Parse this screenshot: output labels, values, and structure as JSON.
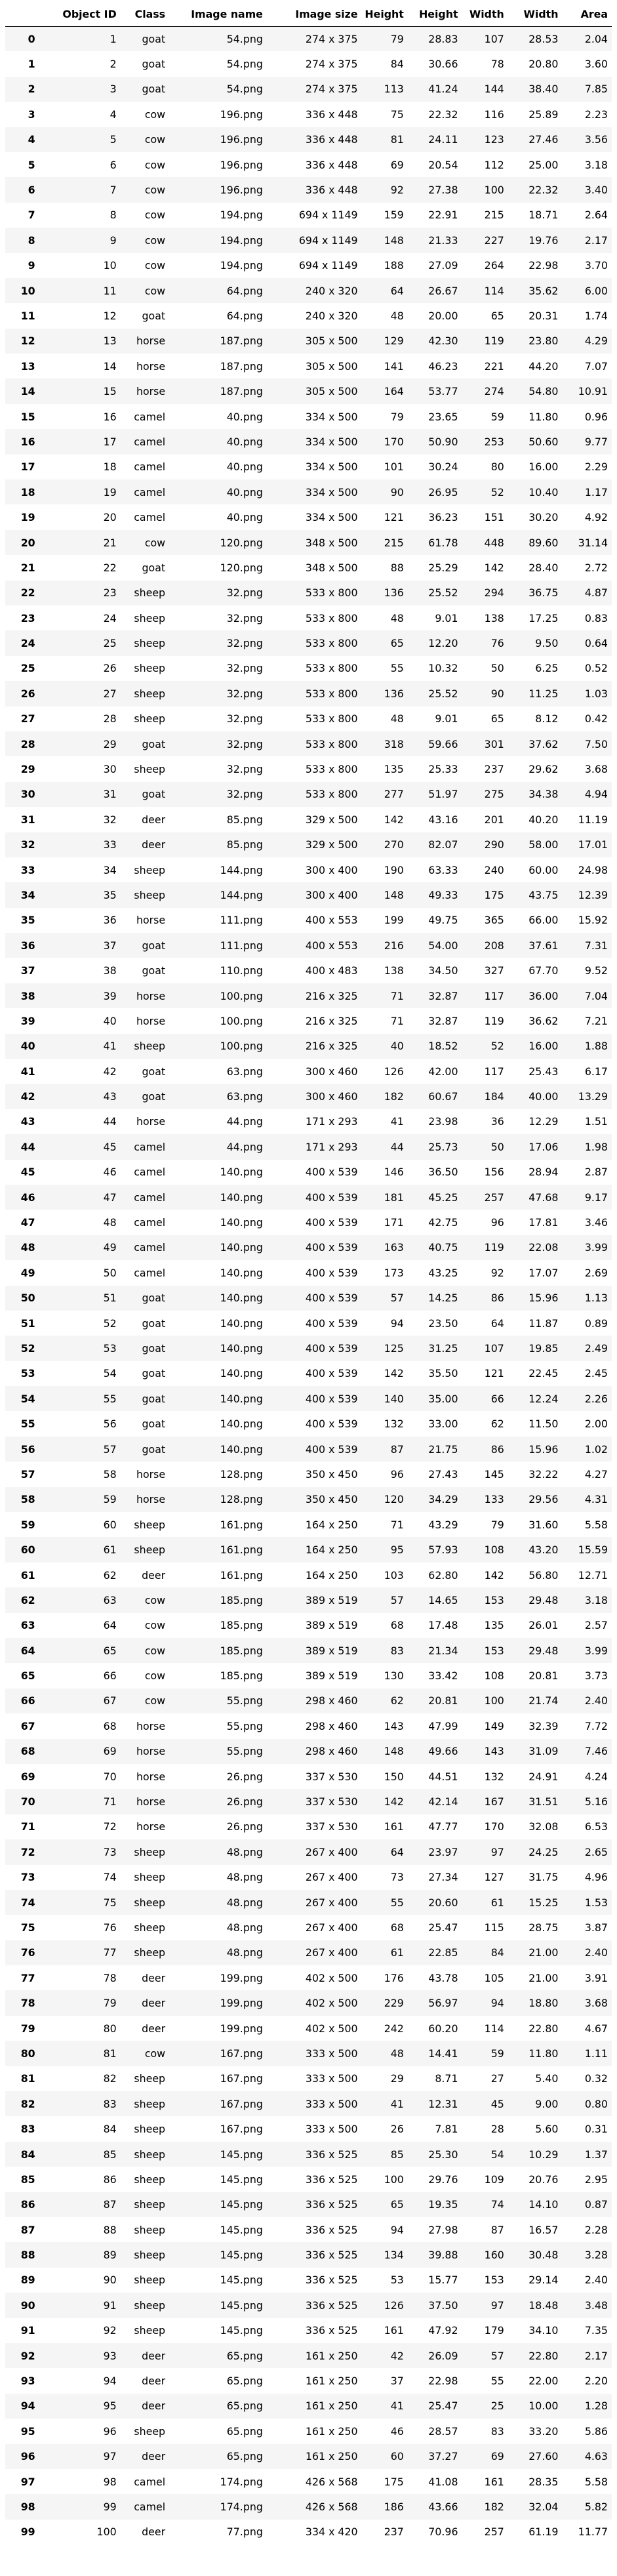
{
  "columns": [
    "",
    "Object ID",
    "Class",
    "Image name",
    "Image size",
    "Height",
    "Height",
    "Width",
    "Width",
    "Area"
  ],
  "rows": [
    [
      "0",
      "1",
      "goat",
      "54.png",
      "274 x 375",
      "79",
      "28.83",
      "107",
      "28.53",
      "2.04"
    ],
    [
      "1",
      "2",
      "goat",
      "54.png",
      "274 x 375",
      "84",
      "30.66",
      "78",
      "20.80",
      "3.60"
    ],
    [
      "2",
      "3",
      "goat",
      "54.png",
      "274 x 375",
      "113",
      "41.24",
      "144",
      "38.40",
      "7.85"
    ],
    [
      "3",
      "4",
      "cow",
      "196.png",
      "336 x 448",
      "75",
      "22.32",
      "116",
      "25.89",
      "2.23"
    ],
    [
      "4",
      "5",
      "cow",
      "196.png",
      "336 x 448",
      "81",
      "24.11",
      "123",
      "27.46",
      "3.56"
    ],
    [
      "5",
      "6",
      "cow",
      "196.png",
      "336 x 448",
      "69",
      "20.54",
      "112",
      "25.00",
      "3.18"
    ],
    [
      "6",
      "7",
      "cow",
      "196.png",
      "336 x 448",
      "92",
      "27.38",
      "100",
      "22.32",
      "3.40"
    ],
    [
      "7",
      "8",
      "cow",
      "194.png",
      "694 x 1149",
      "159",
      "22.91",
      "215",
      "18.71",
      "2.64"
    ],
    [
      "8",
      "9",
      "cow",
      "194.png",
      "694 x 1149",
      "148",
      "21.33",
      "227",
      "19.76",
      "2.17"
    ],
    [
      "9",
      "10",
      "cow",
      "194.png",
      "694 x 1149",
      "188",
      "27.09",
      "264",
      "22.98",
      "3.70"
    ],
    [
      "10",
      "11",
      "cow",
      "64.png",
      "240 x 320",
      "64",
      "26.67",
      "114",
      "35.62",
      "6.00"
    ],
    [
      "11",
      "12",
      "goat",
      "64.png",
      "240 x 320",
      "48",
      "20.00",
      "65",
      "20.31",
      "1.74"
    ],
    [
      "12",
      "13",
      "horse",
      "187.png",
      "305 x 500",
      "129",
      "42.30",
      "119",
      "23.80",
      "4.29"
    ],
    [
      "13",
      "14",
      "horse",
      "187.png",
      "305 x 500",
      "141",
      "46.23",
      "221",
      "44.20",
      "7.07"
    ],
    [
      "14",
      "15",
      "horse",
      "187.png",
      "305 x 500",
      "164",
      "53.77",
      "274",
      "54.80",
      "10.91"
    ],
    [
      "15",
      "16",
      "camel",
      "40.png",
      "334 x 500",
      "79",
      "23.65",
      "59",
      "11.80",
      "0.96"
    ],
    [
      "16",
      "17",
      "camel",
      "40.png",
      "334 x 500",
      "170",
      "50.90",
      "253",
      "50.60",
      "9.77"
    ],
    [
      "17",
      "18",
      "camel",
      "40.png",
      "334 x 500",
      "101",
      "30.24",
      "80",
      "16.00",
      "2.29"
    ],
    [
      "18",
      "19",
      "camel",
      "40.png",
      "334 x 500",
      "90",
      "26.95",
      "52",
      "10.40",
      "1.17"
    ],
    [
      "19",
      "20",
      "camel",
      "40.png",
      "334 x 500",
      "121",
      "36.23",
      "151",
      "30.20",
      "4.92"
    ],
    [
      "20",
      "21",
      "cow",
      "120.png",
      "348 x 500",
      "215",
      "61.78",
      "448",
      "89.60",
      "31.14"
    ],
    [
      "21",
      "22",
      "goat",
      "120.png",
      "348 x 500",
      "88",
      "25.29",
      "142",
      "28.40",
      "2.72"
    ],
    [
      "22",
      "23",
      "sheep",
      "32.png",
      "533 x 800",
      "136",
      "25.52",
      "294",
      "36.75",
      "4.87"
    ],
    [
      "23",
      "24",
      "sheep",
      "32.png",
      "533 x 800",
      "48",
      "9.01",
      "138",
      "17.25",
      "0.83"
    ],
    [
      "24",
      "25",
      "sheep",
      "32.png",
      "533 x 800",
      "65",
      "12.20",
      "76",
      "9.50",
      "0.64"
    ],
    [
      "25",
      "26",
      "sheep",
      "32.png",
      "533 x 800",
      "55",
      "10.32",
      "50",
      "6.25",
      "0.52"
    ],
    [
      "26",
      "27",
      "sheep",
      "32.png",
      "533 x 800",
      "136",
      "25.52",
      "90",
      "11.25",
      "1.03"
    ],
    [
      "27",
      "28",
      "sheep",
      "32.png",
      "533 x 800",
      "48",
      "9.01",
      "65",
      "8.12",
      "0.42"
    ],
    [
      "28",
      "29",
      "goat",
      "32.png",
      "533 x 800",
      "318",
      "59.66",
      "301",
      "37.62",
      "7.50"
    ],
    [
      "29",
      "30",
      "sheep",
      "32.png",
      "533 x 800",
      "135",
      "25.33",
      "237",
      "29.62",
      "3.68"
    ],
    [
      "30",
      "31",
      "goat",
      "32.png",
      "533 x 800",
      "277",
      "51.97",
      "275",
      "34.38",
      "4.94"
    ],
    [
      "31",
      "32",
      "deer",
      "85.png",
      "329 x 500",
      "142",
      "43.16",
      "201",
      "40.20",
      "11.19"
    ],
    [
      "32",
      "33",
      "deer",
      "85.png",
      "329 x 500",
      "270",
      "82.07",
      "290",
      "58.00",
      "17.01"
    ],
    [
      "33",
      "34",
      "sheep",
      "144.png",
      "300 x 400",
      "190",
      "63.33",
      "240",
      "60.00",
      "24.98"
    ],
    [
      "34",
      "35",
      "sheep",
      "144.png",
      "300 x 400",
      "148",
      "49.33",
      "175",
      "43.75",
      "12.39"
    ],
    [
      "35",
      "36",
      "horse",
      "111.png",
      "400 x 553",
      "199",
      "49.75",
      "365",
      "66.00",
      "15.92"
    ],
    [
      "36",
      "37",
      "goat",
      "111.png",
      "400 x 553",
      "216",
      "54.00",
      "208",
      "37.61",
      "7.31"
    ],
    [
      "37",
      "38",
      "goat",
      "110.png",
      "400 x 483",
      "138",
      "34.50",
      "327",
      "67.70",
      "9.52"
    ],
    [
      "38",
      "39",
      "horse",
      "100.png",
      "216 x 325",
      "71",
      "32.87",
      "117",
      "36.00",
      "7.04"
    ],
    [
      "39",
      "40",
      "horse",
      "100.png",
      "216 x 325",
      "71",
      "32.87",
      "119",
      "36.62",
      "7.21"
    ],
    [
      "40",
      "41",
      "sheep",
      "100.png",
      "216 x 325",
      "40",
      "18.52",
      "52",
      "16.00",
      "1.88"
    ],
    [
      "41",
      "42",
      "goat",
      "63.png",
      "300 x 460",
      "126",
      "42.00",
      "117",
      "25.43",
      "6.17"
    ],
    [
      "42",
      "43",
      "goat",
      "63.png",
      "300 x 460",
      "182",
      "60.67",
      "184",
      "40.00",
      "13.29"
    ],
    [
      "43",
      "44",
      "horse",
      "44.png",
      "171 x 293",
      "41",
      "23.98",
      "36",
      "12.29",
      "1.51"
    ],
    [
      "44",
      "45",
      "camel",
      "44.png",
      "171 x 293",
      "44",
      "25.73",
      "50",
      "17.06",
      "1.98"
    ],
    [
      "45",
      "46",
      "camel",
      "140.png",
      "400 x 539",
      "146",
      "36.50",
      "156",
      "28.94",
      "2.87"
    ],
    [
      "46",
      "47",
      "camel",
      "140.png",
      "400 x 539",
      "181",
      "45.25",
      "257",
      "47.68",
      "9.17"
    ],
    [
      "47",
      "48",
      "camel",
      "140.png",
      "400 x 539",
      "171",
      "42.75",
      "96",
      "17.81",
      "3.46"
    ],
    [
      "48",
      "49",
      "camel",
      "140.png",
      "400 x 539",
      "163",
      "40.75",
      "119",
      "22.08",
      "3.99"
    ],
    [
      "49",
      "50",
      "camel",
      "140.png",
      "400 x 539",
      "173",
      "43.25",
      "92",
      "17.07",
      "2.69"
    ],
    [
      "50",
      "51",
      "goat",
      "140.png",
      "400 x 539",
      "57",
      "14.25",
      "86",
      "15.96",
      "1.13"
    ],
    [
      "51",
      "52",
      "goat",
      "140.png",
      "400 x 539",
      "94",
      "23.50",
      "64",
      "11.87",
      "0.89"
    ],
    [
      "52",
      "53",
      "goat",
      "140.png",
      "400 x 539",
      "125",
      "31.25",
      "107",
      "19.85",
      "2.49"
    ],
    [
      "53",
      "54",
      "goat",
      "140.png",
      "400 x 539",
      "142",
      "35.50",
      "121",
      "22.45",
      "2.45"
    ],
    [
      "54",
      "55",
      "goat",
      "140.png",
      "400 x 539",
      "140",
      "35.00",
      "66",
      "12.24",
      "2.26"
    ],
    [
      "55",
      "56",
      "goat",
      "140.png",
      "400 x 539",
      "132",
      "33.00",
      "62",
      "11.50",
      "2.00"
    ],
    [
      "56",
      "57",
      "goat",
      "140.png",
      "400 x 539",
      "87",
      "21.75",
      "86",
      "15.96",
      "1.02"
    ],
    [
      "57",
      "58",
      "horse",
      "128.png",
      "350 x 450",
      "96",
      "27.43",
      "145",
      "32.22",
      "4.27"
    ],
    [
      "58",
      "59",
      "horse",
      "128.png",
      "350 x 450",
      "120",
      "34.29",
      "133",
      "29.56",
      "4.31"
    ],
    [
      "59",
      "60",
      "sheep",
      "161.png",
      "164 x 250",
      "71",
      "43.29",
      "79",
      "31.60",
      "5.58"
    ],
    [
      "60",
      "61",
      "sheep",
      "161.png",
      "164 x 250",
      "95",
      "57.93",
      "108",
      "43.20",
      "15.59"
    ],
    [
      "61",
      "62",
      "deer",
      "161.png",
      "164 x 250",
      "103",
      "62.80",
      "142",
      "56.80",
      "12.71"
    ],
    [
      "62",
      "63",
      "cow",
      "185.png",
      "389 x 519",
      "57",
      "14.65",
      "153",
      "29.48",
      "3.18"
    ],
    [
      "63",
      "64",
      "cow",
      "185.png",
      "389 x 519",
      "68",
      "17.48",
      "135",
      "26.01",
      "2.57"
    ],
    [
      "64",
      "65",
      "cow",
      "185.png",
      "389 x 519",
      "83",
      "21.34",
      "153",
      "29.48",
      "3.99"
    ],
    [
      "65",
      "66",
      "cow",
      "185.png",
      "389 x 519",
      "130",
      "33.42",
      "108",
      "20.81",
      "3.73"
    ],
    [
      "66",
      "67",
      "cow",
      "55.png",
      "298 x 460",
      "62",
      "20.81",
      "100",
      "21.74",
      "2.40"
    ],
    [
      "67",
      "68",
      "horse",
      "55.png",
      "298 x 460",
      "143",
      "47.99",
      "149",
      "32.39",
      "7.72"
    ],
    [
      "68",
      "69",
      "horse",
      "55.png",
      "298 x 460",
      "148",
      "49.66",
      "143",
      "31.09",
      "7.46"
    ],
    [
      "69",
      "70",
      "horse",
      "26.png",
      "337 x 530",
      "150",
      "44.51",
      "132",
      "24.91",
      "4.24"
    ],
    [
      "70",
      "71",
      "horse",
      "26.png",
      "337 x 530",
      "142",
      "42.14",
      "167",
      "31.51",
      "5.16"
    ],
    [
      "71",
      "72",
      "horse",
      "26.png",
      "337 x 530",
      "161",
      "47.77",
      "170",
      "32.08",
      "6.53"
    ],
    [
      "72",
      "73",
      "sheep",
      "48.png",
      "267 x 400",
      "64",
      "23.97",
      "97",
      "24.25",
      "2.65"
    ],
    [
      "73",
      "74",
      "sheep",
      "48.png",
      "267 x 400",
      "73",
      "27.34",
      "127",
      "31.75",
      "4.96"
    ],
    [
      "74",
      "75",
      "sheep",
      "48.png",
      "267 x 400",
      "55",
      "20.60",
      "61",
      "15.25",
      "1.53"
    ],
    [
      "75",
      "76",
      "sheep",
      "48.png",
      "267 x 400",
      "68",
      "25.47",
      "115",
      "28.75",
      "3.87"
    ],
    [
      "76",
      "77",
      "sheep",
      "48.png",
      "267 x 400",
      "61",
      "22.85",
      "84",
      "21.00",
      "2.40"
    ],
    [
      "77",
      "78",
      "deer",
      "199.png",
      "402 x 500",
      "176",
      "43.78",
      "105",
      "21.00",
      "3.91"
    ],
    [
      "78",
      "79",
      "deer",
      "199.png",
      "402 x 500",
      "229",
      "56.97",
      "94",
      "18.80",
      "3.68"
    ],
    [
      "79",
      "80",
      "deer",
      "199.png",
      "402 x 500",
      "242",
      "60.20",
      "114",
      "22.80",
      "4.67"
    ],
    [
      "80",
      "81",
      "cow",
      "167.png",
      "333 x 500",
      "48",
      "14.41",
      "59",
      "11.80",
      "1.11"
    ],
    [
      "81",
      "82",
      "sheep",
      "167.png",
      "333 x 500",
      "29",
      "8.71",
      "27",
      "5.40",
      "0.32"
    ],
    [
      "82",
      "83",
      "sheep",
      "167.png",
      "333 x 500",
      "41",
      "12.31",
      "45",
      "9.00",
      "0.80"
    ],
    [
      "83",
      "84",
      "sheep",
      "167.png",
      "333 x 500",
      "26",
      "7.81",
      "28",
      "5.60",
      "0.31"
    ],
    [
      "84",
      "85",
      "sheep",
      "145.png",
      "336 x 525",
      "85",
      "25.30",
      "54",
      "10.29",
      "1.37"
    ],
    [
      "85",
      "86",
      "sheep",
      "145.png",
      "336 x 525",
      "100",
      "29.76",
      "109",
      "20.76",
      "2.95"
    ],
    [
      "86",
      "87",
      "sheep",
      "145.png",
      "336 x 525",
      "65",
      "19.35",
      "74",
      "14.10",
      "0.87"
    ],
    [
      "87",
      "88",
      "sheep",
      "145.png",
      "336 x 525",
      "94",
      "27.98",
      "87",
      "16.57",
      "2.28"
    ],
    [
      "88",
      "89",
      "sheep",
      "145.png",
      "336 x 525",
      "134",
      "39.88",
      "160",
      "30.48",
      "3.28"
    ],
    [
      "89",
      "90",
      "sheep",
      "145.png",
      "336 x 525",
      "53",
      "15.77",
      "153",
      "29.14",
      "2.40"
    ],
    [
      "90",
      "91",
      "sheep",
      "145.png",
      "336 x 525",
      "126",
      "37.50",
      "97",
      "18.48",
      "3.48"
    ],
    [
      "91",
      "92",
      "sheep",
      "145.png",
      "336 x 525",
      "161",
      "47.92",
      "179",
      "34.10",
      "7.35"
    ],
    [
      "92",
      "93",
      "deer",
      "65.png",
      "161 x 250",
      "42",
      "26.09",
      "57",
      "22.80",
      "2.17"
    ],
    [
      "93",
      "94",
      "deer",
      "65.png",
      "161 x 250",
      "37",
      "22.98",
      "55",
      "22.00",
      "2.20"
    ],
    [
      "94",
      "95",
      "deer",
      "65.png",
      "161 x 250",
      "41",
      "25.47",
      "25",
      "10.00",
      "1.28"
    ],
    [
      "95",
      "96",
      "sheep",
      "65.png",
      "161 x 250",
      "46",
      "28.57",
      "83",
      "33.20",
      "5.86"
    ],
    [
      "96",
      "97",
      "deer",
      "65.png",
      "161 x 250",
      "60",
      "37.27",
      "69",
      "27.60",
      "4.63"
    ],
    [
      "97",
      "98",
      "camel",
      "174.png",
      "426 x 568",
      "175",
      "41.08",
      "161",
      "28.35",
      "5.58"
    ],
    [
      "98",
      "99",
      "camel",
      "174.png",
      "426 x 568",
      "186",
      "43.66",
      "182",
      "32.04",
      "5.82"
    ],
    [
      "99",
      "100",
      "deer",
      "77.png",
      "334 x 420",
      "237",
      "70.96",
      "257",
      "61.19",
      "11.77"
    ]
  ]
}
